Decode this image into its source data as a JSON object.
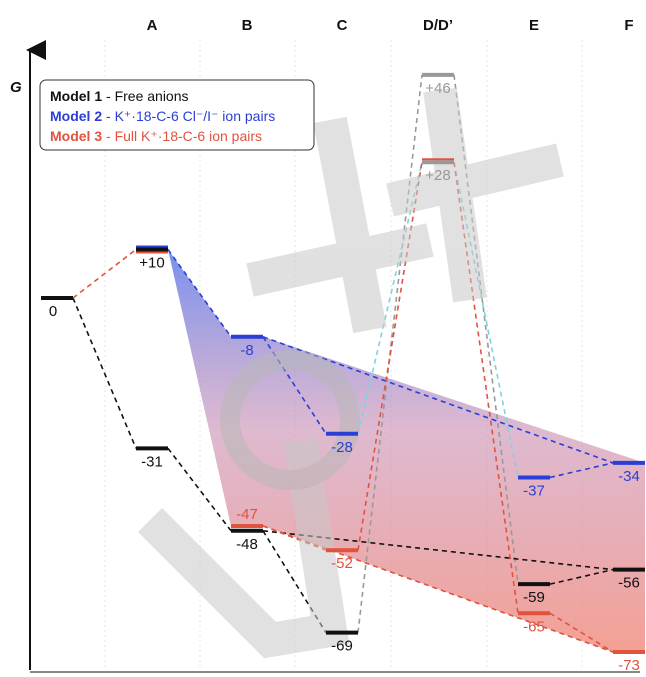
{
  "axis": {
    "label": "G"
  },
  "columns": [
    {
      "id": "Z",
      "label": ""
    },
    {
      "id": "A",
      "label": "A"
    },
    {
      "id": "B",
      "label": "B"
    },
    {
      "id": "C",
      "label": "C"
    },
    {
      "id": "D",
      "label": "D/D’"
    },
    {
      "id": "E",
      "label": "E"
    },
    {
      "id": "F",
      "label": "F"
    }
  ],
  "legend": [
    {
      "key": "m1",
      "bold": "Model 1",
      "rest": " - Free anions",
      "color": "#111111"
    },
    {
      "key": "m2",
      "bold": "Model 2",
      "rest": " - K⁺·18-C-6 Cl⁻/I⁻ ion pairs",
      "color": "#2a3fd6"
    },
    {
      "key": "m3",
      "bold": "Model 3",
      "rest": " - Full K⁺·18-C-6 ion pairs",
      "color": "#e0533d"
    }
  ],
  "colors": {
    "m1": "#111111",
    "m2": "#2a3fd6",
    "m3": "#e0533d",
    "ts": "#999999",
    "cyan": "#7fd3e0"
  },
  "levels": [
    {
      "id": "L0",
      "col": "Z",
      "value": 0,
      "label": "0",
      "model": "m1",
      "above": false
    },
    {
      "id": "LA",
      "col": "A",
      "value": 10,
      "label": "+10",
      "model": "m1",
      "above": false
    },
    {
      "id": "LA1",
      "col": "A",
      "value": -31,
      "label": "-31",
      "model": "m1",
      "above": false
    },
    {
      "id": "LB2",
      "col": "B",
      "value": -8,
      "label": "-8",
      "model": "m2",
      "above": false
    },
    {
      "id": "LB3",
      "col": "B",
      "value": -47,
      "label": "-47",
      "model": "m3",
      "above": true
    },
    {
      "id": "LB1",
      "col": "B",
      "value": -48,
      "label": "-48",
      "model": "m1",
      "above": false
    },
    {
      "id": "LC2",
      "col": "C",
      "value": -28,
      "label": "-28",
      "model": "m2",
      "above": false
    },
    {
      "id": "LC3",
      "col": "C",
      "value": -52,
      "label": "-52",
      "model": "m3",
      "above": false
    },
    {
      "id": "LC1",
      "col": "C",
      "value": -69,
      "label": "-69",
      "model": "m1",
      "above": false
    },
    {
      "id": "LD1",
      "col": "D",
      "value": 46,
      "label": "+46",
      "model": "ts",
      "above": false
    },
    {
      "id": "LD2",
      "col": "D",
      "value": 28,
      "label": "+28",
      "model": "ts",
      "above": false
    },
    {
      "id": "LE2",
      "col": "E",
      "value": -37,
      "label": "-37",
      "model": "m2",
      "above": false
    },
    {
      "id": "LE1",
      "col": "E",
      "value": -59,
      "label": "-59",
      "model": "m1",
      "above": false
    },
    {
      "id": "LE3",
      "col": "E",
      "value": -65,
      "label": "-65",
      "model": "m3",
      "above": false
    },
    {
      "id": "LF2",
      "col": "F",
      "value": -34,
      "label": "-34",
      "model": "m2",
      "above": false
    },
    {
      "id": "LF1",
      "col": "F",
      "value": -56,
      "label": "-56",
      "model": "m1",
      "above": false
    },
    {
      "id": "LF3",
      "col": "F",
      "value": -73,
      "label": "-73",
      "model": "m3",
      "above": false
    }
  ],
  "connections": [
    {
      "from": "L0",
      "to": "LA1",
      "model": "m1"
    },
    {
      "from": "LA1",
      "to": "LB1",
      "model": "m1"
    },
    {
      "from": "LB1",
      "to": "LC1",
      "model": "m1"
    },
    {
      "from": "LC1",
      "to": "LD1",
      "model": "ts"
    },
    {
      "from": "LD1",
      "to": "LE1",
      "model": "ts"
    },
    {
      "from": "LE1",
      "to": "LF1",
      "model": "m1"
    },
    {
      "from": "LB1",
      "to": "LF1",
      "model": "m1"
    },
    {
      "from": "L0",
      "to": "LA",
      "model": "m3"
    },
    {
      "from": "LA",
      "to": "LB2",
      "model": "m2"
    },
    {
      "from": "LB2",
      "to": "LC2",
      "model": "m2"
    },
    {
      "from": "LB2",
      "to": "LF2",
      "model": "m2"
    },
    {
      "from": "LE2",
      "to": "LF2",
      "model": "m2"
    },
    {
      "from": "LC2",
      "to": "LD2",
      "model": "cyan"
    },
    {
      "from": "LD2",
      "to": "LE2",
      "model": "cyan"
    },
    {
      "from": "LB3",
      "to": "LC3",
      "model": "m3"
    },
    {
      "from": "LC3",
      "to": "LD2",
      "model": "m3"
    },
    {
      "from": "LD2",
      "to": "LE3",
      "model": "m3"
    },
    {
      "from": "LE3",
      "to": "LF3",
      "model": "m3"
    },
    {
      "from": "LB3",
      "to": "LF3",
      "model": "m3"
    }
  ],
  "watermark": {
    "text": "VCH",
    "color": "#c8c8c8"
  }
}
